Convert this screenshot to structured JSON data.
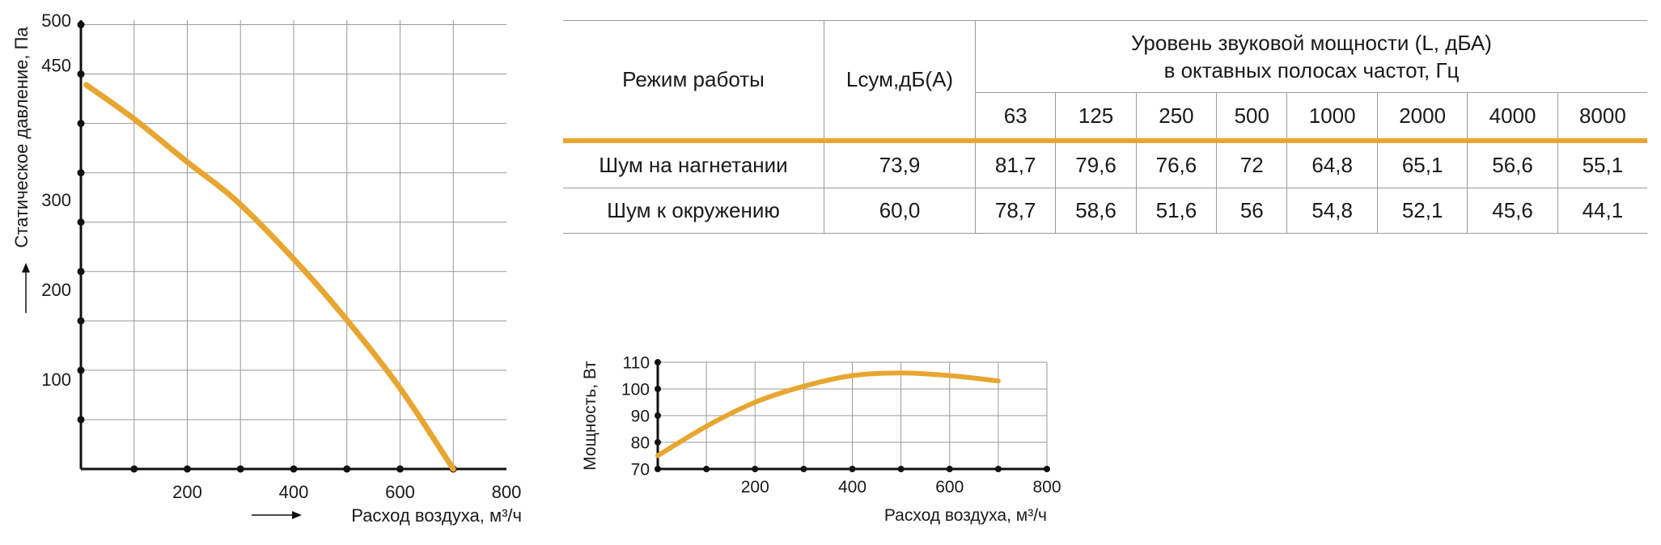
{
  "colors": {
    "curve": "#e8a631",
    "grid": "#9a9a9a",
    "axis": "#111111"
  },
  "chart_data": [
    {
      "type": "line",
      "ylabel": "Статическое давление, Па",
      "xlabel": "Расход воздуха, м³/ч",
      "xlim": [
        0,
        800
      ],
      "ylim": [
        0,
        500
      ],
      "x_ticks": [
        200,
        400,
        600,
        800
      ],
      "y_ticks": [
        100,
        200,
        300,
        450,
        500
      ],
      "grid": true,
      "series": [
        {
          "x": [
            10,
            100,
            200,
            290,
            400,
            500,
            600,
            700
          ],
          "values": [
            428,
            390,
            342,
            300,
            234,
            166,
            90,
            0
          ]
        }
      ]
    },
    {
      "type": "line",
      "ylabel": "Мощность, Вт",
      "xlabel": "Расход воздуха, м³/ч",
      "xlim": [
        0,
        800
      ],
      "ylim": [
        70,
        110
      ],
      "x_ticks": [
        200,
        400,
        600,
        800
      ],
      "y_ticks": [
        70,
        80,
        90,
        100,
        110
      ],
      "grid": true,
      "series": [
        {
          "x": [
            0,
            100,
            200,
            300,
            400,
            500,
            600,
            700
          ],
          "values": [
            75,
            86,
            95,
            101,
            105,
            106,
            105,
            103
          ]
        }
      ]
    }
  ],
  "table": {
    "mode_header": "Режим работы",
    "lsum_header": "Lсум,дБ(А)",
    "group_header_line1": "Уровень звуковой мощности (L, дБА)",
    "group_header_line2": "в октавных полосах частот, Гц",
    "frequencies": [
      "63",
      "125",
      "250",
      "500",
      "1000",
      "2000",
      "4000",
      "8000"
    ],
    "rows": [
      {
        "mode": "Шум на нагнетании",
        "lsum": "73,9",
        "values": [
          "81,7",
          "79,6",
          "76,6",
          "72",
          "64,8",
          "65,1",
          "56,6",
          "55,1"
        ]
      },
      {
        "mode": "Шум к окружению",
        "lsum": "60,0",
        "values": [
          "78,7",
          "58,6",
          "51,6",
          "56",
          "54,8",
          "52,1",
          "45,6",
          "44,1"
        ]
      }
    ]
  }
}
